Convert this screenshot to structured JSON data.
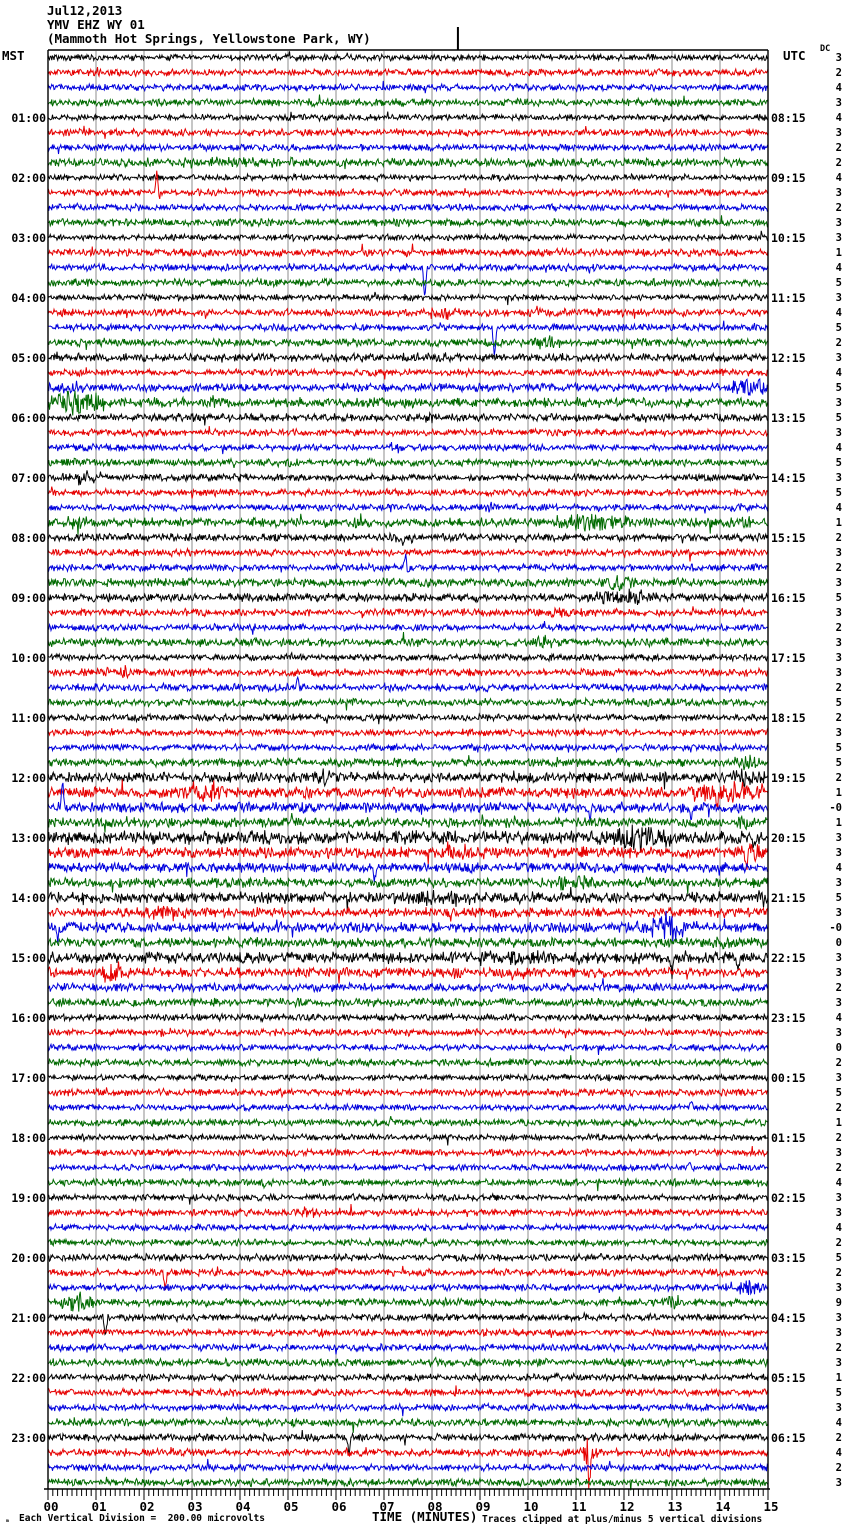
{
  "header": {
    "date": "Jul12,2013",
    "station": "YMV EHZ WY 01",
    "location": "(Mammoth Hot Springs, Yellowstone Park, WY)"
  },
  "left_axis": {
    "title": "MST",
    "labels": [
      "01:00",
      "02:00",
      "03:00",
      "04:00",
      "05:00",
      "06:00",
      "07:00",
      "08:00",
      "09:00",
      "10:00",
      "11:00",
      "12:00",
      "13:00",
      "14:00",
      "15:00",
      "16:00",
      "17:00",
      "18:00",
      "19:00",
      "20:00",
      "21:00",
      "22:00",
      "23:00"
    ]
  },
  "right_axis": {
    "title": "UTC",
    "dc_title": "DC",
    "labels": [
      "08:15",
      "09:15",
      "10:15",
      "11:15",
      "12:15",
      "13:15",
      "14:15",
      "15:15",
      "16:15",
      "17:15",
      "18:15",
      "19:15",
      "20:15",
      "21:15",
      "22:15",
      "23:15",
      "00:15",
      "01:15",
      "02:15",
      "03:15",
      "04:15",
      "05:15",
      "06:15"
    ],
    "dc_values": [
      "3",
      "2",
      "4",
      "3",
      "4",
      "3",
      "2",
      "2",
      "4",
      "3",
      "2",
      "3",
      "3",
      "1",
      "4",
      "5",
      "3",
      "4",
      "5",
      "2",
      "3",
      "4",
      "5",
      "3",
      "5",
      "3",
      "4",
      "5",
      "3",
      "5",
      "4",
      "1",
      "2",
      "3",
      "2",
      "3",
      "5",
      "3",
      "2",
      "3",
      "3",
      "3",
      "2",
      "5",
      "2",
      "3",
      "5",
      "5",
      "2",
      "1",
      "-0",
      "1",
      "3",
      "3",
      "4",
      "3",
      "5",
      "3",
      "-0",
      "0",
      "3",
      "3",
      "2",
      "3",
      "4",
      "3",
      "0",
      "2",
      "3",
      "5",
      "2",
      "1",
      "2",
      "3",
      "2",
      "4",
      "3",
      "3",
      "4",
      "2",
      "5",
      "2",
      "3",
      "9",
      "3",
      "3",
      "2",
      "3",
      "1",
      "5",
      "3",
      "4",
      "2",
      "4",
      "2",
      "3"
    ]
  },
  "x_axis": {
    "tick_labels": [
      "00",
      "01",
      "02",
      "03",
      "04",
      "05",
      "06",
      "07",
      "08",
      "09",
      "10",
      "11",
      "12",
      "13",
      "14",
      "15"
    ],
    "title": "TIME (MINUTES)"
  },
  "footer": {
    "corner_glyph": "ₘ",
    "division_note": "Each Vertical Division =  200.00 microvolts",
    "clip_note": "Traces clipped at plus/minus 5 vertical divisions"
  },
  "chart_data": {
    "type": "line",
    "subtype": "helicorder-seismogram",
    "title": "YMV EHZ WY 01 (Mammoth Hot Springs, Yellowstone Park, WY) Jul12,2013",
    "xlabel": "TIME (MINUTES)",
    "x_range_minutes": [
      0,
      15
    ],
    "minutes_per_line": 15,
    "num_lines": 96,
    "start_time_mst": "00:00",
    "microvolts_per_division": 200.0,
    "clip_divisions": 5,
    "grid": true,
    "line_order_colors": [
      "black",
      "red",
      "blue",
      "green"
    ],
    "trace_colors": {
      "black": "#000000",
      "red": "#e60000",
      "blue": "#0000dd",
      "green": "#006a00"
    },
    "grid_color": "#8c8c8c",
    "annotations": {
      "time_marker_minute": 8.54
    },
    "noise_levels": [
      1.8,
      2.0,
      2.0,
      2.2,
      1.8,
      2.0,
      2.0,
      2.4,
      1.8,
      2.0,
      2.0,
      2.2,
      1.8,
      2.2,
      2.0,
      2.2,
      1.8,
      2.2,
      2.0,
      2.2,
      2.2,
      2.0,
      2.4,
      2.8,
      2.2,
      2.0,
      2.0,
      2.2,
      2.0,
      2.0,
      2.0,
      2.6,
      2.2,
      2.0,
      2.0,
      2.4,
      2.4,
      2.2,
      2.0,
      2.4,
      2.0,
      2.2,
      2.2,
      2.2,
      2.0,
      2.0,
      2.0,
      2.4,
      3.0,
      3.2,
      3.0,
      2.8,
      3.8,
      3.2,
      2.8,
      2.8,
      3.2,
      2.8,
      3.0,
      2.8,
      3.2,
      2.8,
      2.4,
      2.4,
      2.0,
      2.0,
      1.8,
      2.0,
      1.8,
      2.0,
      1.8,
      2.0,
      1.8,
      1.9,
      1.8,
      2.0,
      1.9,
      2.0,
      1.8,
      2.0,
      2.0,
      2.0,
      2.0,
      2.2,
      2.0,
      2.0,
      2.0,
      2.2,
      2.0,
      2.1,
      2.0,
      2.2,
      2.2,
      2.2,
      2.0,
      2.2
    ],
    "events": [
      {
        "r": 7,
        "m": 3.5,
        "w": 4.0,
        "a": 2.5
      },
      {
        "r": 9,
        "m": 2.27,
        "w": 0,
        "a": 25,
        "s": 1
      },
      {
        "r": 9,
        "m": 2.31,
        "w": 0,
        "a": -8,
        "s": 1
      },
      {
        "r": 13,
        "m": 3.4,
        "w": 0.5,
        "a": 3
      },
      {
        "r": 14,
        "m": 7.85,
        "w": 0,
        "a": -32,
        "s": 1
      },
      {
        "r": 17,
        "m": 8.2,
        "w": 0.9,
        "a": 4
      },
      {
        "r": 18,
        "m": 9.3,
        "w": 0,
        "a": -27,
        "s": 1
      },
      {
        "r": 19,
        "m": 10.4,
        "w": 0.5,
        "a": 4
      },
      {
        "r": 20,
        "m": 7.0,
        "w": 12,
        "a": 1.2
      },
      {
        "r": 22,
        "m": 14.7,
        "w": 0.9,
        "a": 10
      },
      {
        "r": 22,
        "m": 0.4,
        "w": 0.8,
        "a": 4
      },
      {
        "r": 23,
        "m": 0.55,
        "w": 1.2,
        "a": 11
      },
      {
        "r": 23,
        "m": 3.5,
        "w": 0.4,
        "a": 7
      },
      {
        "r": 24,
        "m": 8.0,
        "w": 0.5,
        "a": 3
      },
      {
        "r": 28,
        "m": 0.7,
        "w": 0.8,
        "a": 7
      },
      {
        "r": 30,
        "m": 9.2,
        "w": 0.3,
        "a": 4
      },
      {
        "r": 31,
        "m": 0.6,
        "w": 0.4,
        "a": 5
      },
      {
        "r": 31,
        "m": 6.5,
        "w": 0.4,
        "a": 5
      },
      {
        "r": 31,
        "m": 11.3,
        "w": 1.4,
        "a": 7
      },
      {
        "r": 31,
        "m": 14.5,
        "w": 0.4,
        "a": 4
      },
      {
        "r": 32,
        "m": 7.45,
        "w": 0.7,
        "a": 6
      },
      {
        "r": 34,
        "m": 7.45,
        "w": 0,
        "a": 13,
        "s": 1
      },
      {
        "r": 34,
        "m": 7.5,
        "w": 0,
        "a": -8,
        "s": 1
      },
      {
        "r": 35,
        "m": 11.9,
        "w": 0.6,
        "a": 7
      },
      {
        "r": 36,
        "m": 12.0,
        "w": 1.2,
        "a": 8
      },
      {
        "r": 37,
        "m": 10.7,
        "w": 0.7,
        "a": 5
      },
      {
        "r": 39,
        "m": 10.3,
        "w": 0.4,
        "a": 6
      },
      {
        "r": 41,
        "m": 1.5,
        "w": 0.8,
        "a": 5
      },
      {
        "r": 42,
        "m": 5.2,
        "w": 0,
        "a": 9,
        "s": 1
      },
      {
        "r": 47,
        "m": 14.6,
        "w": 0.6,
        "a": 6
      },
      {
        "r": 48,
        "m": 5.7,
        "w": 0.5,
        "a": 5
      },
      {
        "r": 48,
        "m": 14.5,
        "w": 1.0,
        "a": 6
      },
      {
        "r": 49,
        "m": 3.3,
        "w": 0.9,
        "a": 9
      },
      {
        "r": 49,
        "m": 14.2,
        "w": 1.6,
        "a": 10
      },
      {
        "r": 49,
        "m": 13.95,
        "w": 0,
        "a": -16,
        "s": 1
      },
      {
        "r": 50,
        "m": 0.3,
        "w": 0,
        "a": 26,
        "s": 1
      },
      {
        "r": 50,
        "m": 11.3,
        "w": 0,
        "a": -10,
        "s": 1
      },
      {
        "r": 50,
        "m": 13.4,
        "w": 0,
        "a": -12,
        "s": 1
      },
      {
        "r": 51,
        "m": 14.5,
        "w": 0.4,
        "a": 6
      },
      {
        "r": 52,
        "m": 12.3,
        "w": 1.3,
        "a": 12
      },
      {
        "r": 52,
        "m": 14.7,
        "w": 0,
        "a": -9,
        "s": 1
      },
      {
        "r": 53,
        "m": 8.7,
        "w": 1.2,
        "a": 6
      },
      {
        "r": 53,
        "m": 14.8,
        "w": 0.6,
        "a": 9
      },
      {
        "r": 53,
        "m": 14.55,
        "w": 0,
        "a": -18,
        "s": 1
      },
      {
        "r": 54,
        "m": 6.8,
        "w": 0,
        "a": -15,
        "s": 1
      },
      {
        "r": 55,
        "m": 11.0,
        "w": 0.9,
        "a": 7
      },
      {
        "r": 56,
        "m": 8.1,
        "w": 1.4,
        "a": 6
      },
      {
        "r": 56,
        "m": 14.85,
        "w": 0.3,
        "a": 7
      },
      {
        "r": 57,
        "m": 2.45,
        "w": 0.6,
        "a": 8
      },
      {
        "r": 58,
        "m": 12.9,
        "w": 0.9,
        "a": 13
      },
      {
        "r": 58,
        "m": 0.2,
        "w": 0,
        "a": -12,
        "s": 1
      },
      {
        "r": 59,
        "m": 14.1,
        "w": 0.4,
        "a": 5
      },
      {
        "r": 60,
        "m": 9.5,
        "w": 5.0,
        "a": 4
      },
      {
        "r": 60,
        "m": 13.0,
        "w": 0,
        "a": -18,
        "s": 1
      },
      {
        "r": 60,
        "m": 14.37,
        "w": 0,
        "a": -13,
        "s": 1
      },
      {
        "r": 61,
        "m": 1.35,
        "w": 0.5,
        "a": 10
      },
      {
        "r": 70,
        "m": 13.4,
        "w": 0,
        "a": 5,
        "s": 1
      },
      {
        "r": 74,
        "m": 13.35,
        "w": 0,
        "a": 6,
        "s": 1
      },
      {
        "r": 75,
        "m": 4.5,
        "w": 0,
        "a": -5,
        "s": 1
      },
      {
        "r": 77,
        "m": 5.4,
        "w": 0.4,
        "a": 5
      },
      {
        "r": 81,
        "m": 2.44,
        "w": 0,
        "a": -19,
        "s": 1
      },
      {
        "r": 82,
        "m": 14.6,
        "w": 0.7,
        "a": 8
      },
      {
        "r": 83,
        "m": 0.6,
        "w": 0.7,
        "a": 8
      },
      {
        "r": 83,
        "m": 13.0,
        "w": 0.3,
        "a": 4
      },
      {
        "r": 84,
        "m": 1.2,
        "w": 0,
        "a": -20,
        "s": 1
      },
      {
        "r": 92,
        "m": 6.27,
        "w": 0,
        "a": -18,
        "s": 1
      },
      {
        "r": 93,
        "m": 11.3,
        "w": 0.25,
        "a": 22
      },
      {
        "r": 93,
        "m": 11.28,
        "w": 0,
        "a": -24,
        "s": 1
      }
    ]
  }
}
